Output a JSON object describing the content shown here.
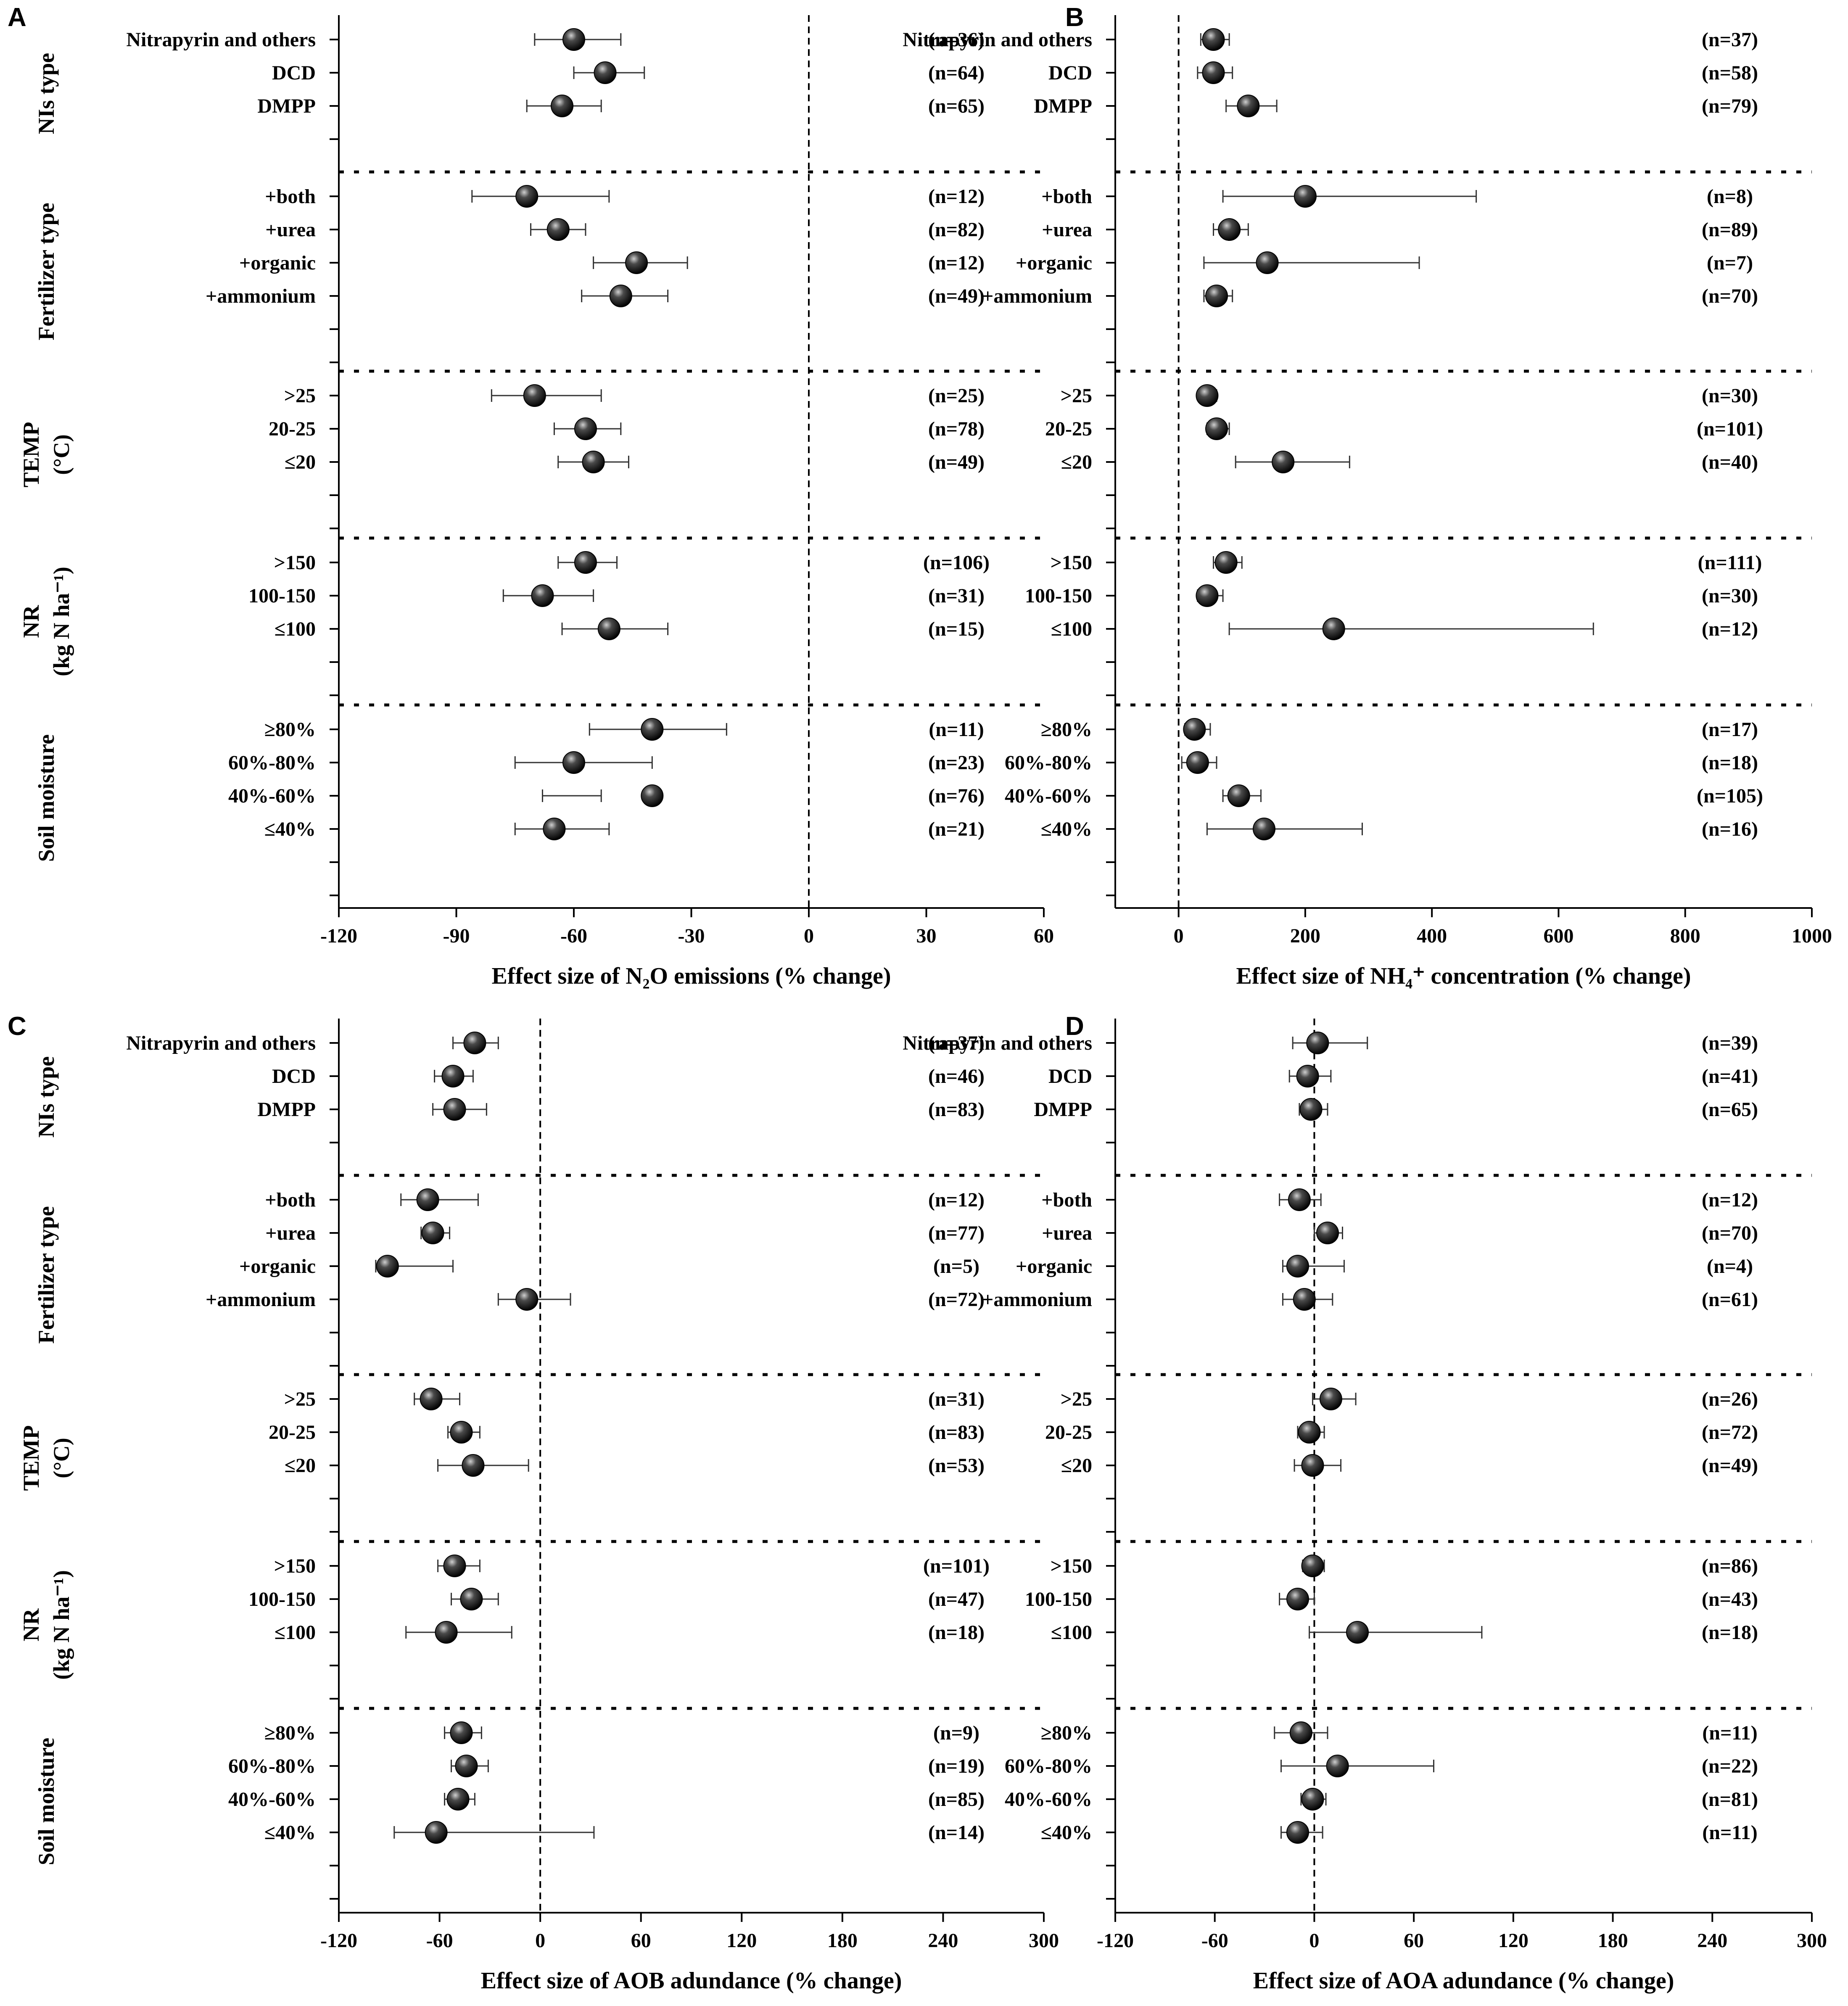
{
  "group_order": [
    "NIs type",
    "Fertilizer type",
    "TEMP",
    "NR",
    "Soil moisture"
  ],
  "group_labels": {
    "nis": [
      "NIs type"
    ],
    "fert": [
      "Fertilizer type"
    ],
    "temp": [
      "TEMP",
      "(°C)"
    ],
    "nr": [
      "NR",
      "(kg N ha⁻¹)"
    ],
    "moist": [
      "Soil moisture"
    ]
  },
  "chart_data": [
    {
      "panel": "A",
      "type": "forest",
      "xlabel": "Effect size of N₂O emissions (% change)",
      "xlim": [
        -120,
        60
      ],
      "xticks": [
        -120,
        -90,
        -60,
        -30,
        0,
        30,
        60
      ],
      "zero_line": 0,
      "groups": [
        {
          "name": "NIs type",
          "rows": [
            {
              "label": "Nitrapyrin and others",
              "mean": -60,
              "lo": -70,
              "hi": -48,
              "n": "(n=36)"
            },
            {
              "label": "DCD",
              "mean": -52,
              "lo": -60,
              "hi": -42,
              "n": "(n=64)"
            },
            {
              "label": "DMPP",
              "mean": -63,
              "lo": -72,
              "hi": -53,
              "n": "(n=65)"
            }
          ]
        },
        {
          "name": "Fertilizer type",
          "rows": [
            {
              "label": "+both",
              "mean": -72,
              "lo": -86,
              "hi": -51,
              "n": "(n=12)"
            },
            {
              "label": "+urea",
              "mean": -64,
              "lo": -71,
              "hi": -57,
              "n": "(n=82)"
            },
            {
              "label": "+organic",
              "mean": -44,
              "lo": -55,
              "hi": -31,
              "n": "(n=12)"
            },
            {
              "label": "+ammonium",
              "mean": -48,
              "lo": -58,
              "hi": -36,
              "n": "(n=49)"
            }
          ]
        },
        {
          "name": "TEMP",
          "rows": [
            {
              "label": ">25",
              "mean": -70,
              "lo": -81,
              "hi": -53,
              "n": "(n=25)"
            },
            {
              "label": "20-25",
              "mean": -57,
              "lo": -65,
              "hi": -48,
              "n": "(n=78)"
            },
            {
              "label": "≤20",
              "mean": -55,
              "lo": -64,
              "hi": -46,
              "n": "(n=49)"
            }
          ]
        },
        {
          "name": "NR",
          "rows": [
            {
              "label": ">150",
              "mean": -57,
              "lo": -64,
              "hi": -49,
              "n": "(n=106)"
            },
            {
              "label": "100-150",
              "mean": -68,
              "lo": -78,
              "hi": -55,
              "n": "(n=31)"
            },
            {
              "label": "≤100",
              "mean": -51,
              "lo": -63,
              "hi": -36,
              "n": "(n=15)"
            }
          ]
        },
        {
          "name": "Soil moisture",
          "rows": [
            {
              "label": "≥80%",
              "mean": -40,
              "lo": -56,
              "hi": -21,
              "n": "(n=11)"
            },
            {
              "label": "60%-80%",
              "mean": -60,
              "lo": -75,
              "hi": -40,
              "n": "(n=23)"
            },
            {
              "label": "40%-60%",
              "mean": -40,
              "lo": -68,
              "hi": -53,
              "n": "(n=76)"
            },
            {
              "label": "≤40%",
              "mean": -65,
              "lo": -75,
              "hi": -51,
              "n": "(n=21)"
            }
          ]
        }
      ]
    },
    {
      "panel": "B",
      "type": "forest",
      "xlabel": "Effect size of NH₄⁺ concentration (% change)",
      "xlim": [
        -100,
        1000
      ],
      "xticks": [
        0,
        200,
        400,
        600,
        800,
        1000
      ],
      "zero_line": 0,
      "groups": [
        {
          "name": "NIs type",
          "rows": [
            {
              "label": "Nitrapyrin and others",
              "mean": 55,
              "lo": 35,
              "hi": 80,
              "n": "(n=37)"
            },
            {
              "label": "DCD",
              "mean": 55,
              "lo": 30,
              "hi": 85,
              "n": "(n=58)"
            },
            {
              "label": "DMPP",
              "mean": 110,
              "lo": 75,
              "hi": 155,
              "n": "(n=79)"
            }
          ]
        },
        {
          "name": "Fertilizer type",
          "rows": [
            {
              "label": "+both",
              "mean": 200,
              "lo": 70,
              "hi": 470,
              "n": "(n=8)"
            },
            {
              "label": "+urea",
              "mean": 80,
              "lo": 55,
              "hi": 110,
              "n": "(n=89)"
            },
            {
              "label": "+organic",
              "mean": 140,
              "lo": 40,
              "hi": 380,
              "n": "(n=7)"
            },
            {
              "label": "+ammonium",
              "mean": 60,
              "lo": 40,
              "hi": 85,
              "n": "(n=70)"
            }
          ]
        },
        {
          "name": "TEMP",
          "rows": [
            {
              "label": ">25",
              "mean": 45,
              "lo": 35,
              "hi": 60,
              "n": "(n=30)"
            },
            {
              "label": "20-25",
              "mean": 60,
              "lo": 45,
              "hi": 80,
              "n": "(n=101)"
            },
            {
              "label": "≤20",
              "mean": 165,
              "lo": 90,
              "hi": 270,
              "n": "(n=40)"
            }
          ]
        },
        {
          "name": "NR",
          "rows": [
            {
              "label": ">150",
              "mean": 75,
              "lo": 55,
              "hi": 100,
              "n": "(n=111)"
            },
            {
              "label": "100-150",
              "mean": 45,
              "lo": 30,
              "hi": 70,
              "n": "(n=30)"
            },
            {
              "label": "≤100",
              "mean": 245,
              "lo": 80,
              "hi": 655,
              "n": "(n=12)"
            }
          ]
        },
        {
          "name": "Soil moisture",
          "rows": [
            {
              "label": "≥80%",
              "mean": 25,
              "lo": 10,
              "hi": 50,
              "n": "(n=17)"
            },
            {
              "label": "60%-80%",
              "mean": 30,
              "lo": 5,
              "hi": 60,
              "n": "(n=18)"
            },
            {
              "label": "40%-60%",
              "mean": 95,
              "lo": 70,
              "hi": 130,
              "n": "(n=105)"
            },
            {
              "label": "≤40%",
              "mean": 135,
              "lo": 45,
              "hi": 290,
              "n": "(n=16)"
            }
          ]
        }
      ]
    },
    {
      "panel": "C",
      "type": "forest",
      "xlabel": "Effect size of AOB adundance (% change)",
      "xlim": [
        -120,
        300
      ],
      "xticks": [
        -120,
        -60,
        0,
        60,
        120,
        180,
        240,
        300
      ],
      "zero_line": 0,
      "groups": [
        {
          "name": "NIs type",
          "rows": [
            {
              "label": "Nitrapyrin and others",
              "mean": -39,
              "lo": -52,
              "hi": -25,
              "n": "(n=37)"
            },
            {
              "label": "DCD",
              "mean": -52,
              "lo": -63,
              "hi": -40,
              "n": "(n=46)"
            },
            {
              "label": "DMPP",
              "mean": -51,
              "lo": -64,
              "hi": -32,
              "n": "(n=83)"
            }
          ]
        },
        {
          "name": "Fertilizer type",
          "rows": [
            {
              "label": "+both",
              "mean": -67,
              "lo": -83,
              "hi": -37,
              "n": "(n=12)"
            },
            {
              "label": "+urea",
              "mean": -64,
              "lo": -71,
              "hi": -54,
              "n": "(n=77)"
            },
            {
              "label": "+organic",
              "mean": -91,
              "lo": -98,
              "hi": -52,
              "n": "(n=5)"
            },
            {
              "label": "+ammonium",
              "mean": -8,
              "lo": -25,
              "hi": 18,
              "n": "(n=72)"
            }
          ]
        },
        {
          "name": "TEMP",
          "rows": [
            {
              "label": ">25",
              "mean": -65,
              "lo": -75,
              "hi": -48,
              "n": "(n=31)"
            },
            {
              "label": "20-25",
              "mean": -47,
              "lo": -55,
              "hi": -36,
              "n": "(n=83)"
            },
            {
              "label": "≤20",
              "mean": -40,
              "lo": -61,
              "hi": -7,
              "n": "(n=53)"
            }
          ]
        },
        {
          "name": "NR",
          "rows": [
            {
              "label": ">150",
              "mean": -51,
              "lo": -61,
              "hi": -36,
              "n": "(n=101)"
            },
            {
              "label": "100-150",
              "mean": -41,
              "lo": -53,
              "hi": -25,
              "n": "(n=47)"
            },
            {
              "label": "≤100",
              "mean": -56,
              "lo": -80,
              "hi": -17,
              "n": "(n=18)"
            }
          ]
        },
        {
          "name": "Soil moisture",
          "rows": [
            {
              "label": "≥80%",
              "mean": -47,
              "lo": -57,
              "hi": -35,
              "n": "(n=9)"
            },
            {
              "label": "60%-80%",
              "mean": -44,
              "lo": -53,
              "hi": -31,
              "n": "(n=19)"
            },
            {
              "label": "40%-60%",
              "mean": -49,
              "lo": -57,
              "hi": -39,
              "n": "(n=85)"
            },
            {
              "label": "≤40%",
              "mean": -62,
              "lo": -87,
              "hi": 32,
              "n": "(n=14)"
            }
          ]
        }
      ]
    },
    {
      "panel": "D",
      "type": "forest",
      "xlabel": "Effect size of AOA adundance (% change)",
      "xlim": [
        -120,
        300
      ],
      "xticks": [
        -120,
        -60,
        0,
        60,
        120,
        180,
        240,
        300
      ],
      "zero_line": 0,
      "groups": [
        {
          "name": "NIs type",
          "rows": [
            {
              "label": "Nitrapyrin and others",
              "mean": 2,
              "lo": -13,
              "hi": 32,
              "n": "(n=39)"
            },
            {
              "label": "DCD",
              "mean": -4,
              "lo": -15,
              "hi": 10,
              "n": "(n=41)"
            },
            {
              "label": "DMPP",
              "mean": -2,
              "lo": -9,
              "hi": 8,
              "n": "(n=65)"
            }
          ]
        },
        {
          "name": "Fertilizer type",
          "rows": [
            {
              "label": "+both",
              "mean": -9,
              "lo": -21,
              "hi": 4,
              "n": "(n=12)"
            },
            {
              "label": "+urea",
              "mean": 8,
              "lo": 0,
              "hi": 17,
              "n": "(n=70)"
            },
            {
              "label": "+organic",
              "mean": -10,
              "lo": -19,
              "hi": 18,
              "n": "(n=4)"
            },
            {
              "label": "+ammonium",
              "mean": -6,
              "lo": -19,
              "hi": 11,
              "n": "(n=61)"
            }
          ]
        },
        {
          "name": "TEMP",
          "rows": [
            {
              "label": ">25",
              "mean": 10,
              "lo": -1,
              "hi": 25,
              "n": "(n=26)"
            },
            {
              "label": "20-25",
              "mean": -3,
              "lo": -10,
              "hi": 6,
              "n": "(n=72)"
            },
            {
              "label": "≤20",
              "mean": -1,
              "lo": -12,
              "hi": 16,
              "n": "(n=49)"
            }
          ]
        },
        {
          "name": "NR",
          "rows": [
            {
              "label": ">150",
              "mean": -1,
              "lo": -7,
              "hi": 6,
              "n": "(n=86)"
            },
            {
              "label": "100-150",
              "mean": -10,
              "lo": -21,
              "hi": 0,
              "n": "(n=43)"
            },
            {
              "label": "≤100",
              "mean": 26,
              "lo": -3,
              "hi": 101,
              "n": "(n=18)"
            }
          ]
        },
        {
          "name": "Soil moisture",
          "rows": [
            {
              "label": "≥80%",
              "mean": -8,
              "lo": -24,
              "hi": 8,
              "n": "(n=11)"
            },
            {
              "label": "60%-80%",
              "mean": 14,
              "lo": -20,
              "hi": 72,
              "n": "(n=22)"
            },
            {
              "label": "40%-60%",
              "mean": -1,
              "lo": -8,
              "hi": 7,
              "n": "(n=81)"
            },
            {
              "label": "≤40%",
              "mean": -10,
              "lo": -20,
              "hi": 5,
              "n": "(n=11)"
            }
          ]
        }
      ]
    }
  ]
}
